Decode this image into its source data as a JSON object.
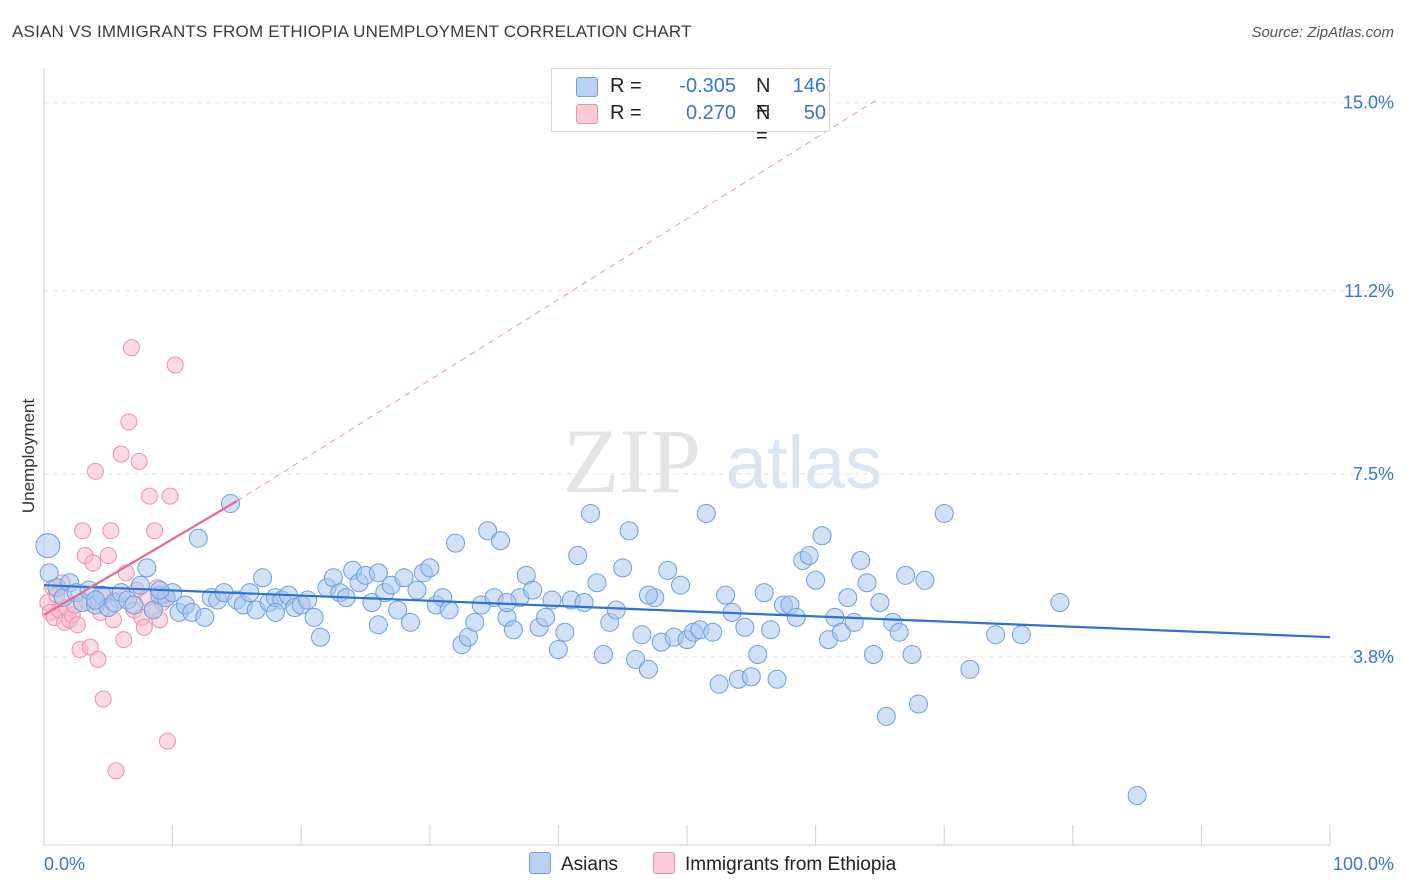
{
  "title": "ASIAN VS IMMIGRANTS FROM ETHIOPIA UNEMPLOYMENT CORRELATION CHART",
  "source": "Source: ZipAtlas.com",
  "watermark": {
    "zip": "ZIP",
    "atlas": "atlas"
  },
  "legend": {
    "asians": {
      "r_label": "R = ",
      "r_value": "-0.305",
      "n_label": "N = ",
      "n_value": "146"
    },
    "ethiopia": {
      "r_label": "R = ",
      "r_value": "0.270",
      "n_label": "N = ",
      "n_value": "50"
    }
  },
  "bottom_legend": {
    "asians": "Asians",
    "ethiopia": "Immigrants from Ethiopia"
  },
  "colors": {
    "asian_fill": "#a9c6ee",
    "asian_stroke": "#6f9fdc",
    "asian_line": "#2f72d0",
    "eth_fill": "#f7bccd",
    "eth_stroke": "#ee8fae",
    "eth_line": "#e36b96",
    "tick_label": "#3a74cf",
    "grid": "#e2e2e2"
  },
  "chart_data": {
    "type": "scatter",
    "title": "ASIAN VS IMMIGRANTS FROM ETHIOPIA UNEMPLOYMENT CORRELATION CHART",
    "xlabel": "",
    "ylabel": "Unemployment",
    "xlim": [
      0,
      100
    ],
    "ylim": [
      0,
      15.5
    ],
    "x_tick_labels": [
      "0.0%",
      "100.0%"
    ],
    "y_ticks": [
      3.8,
      7.5,
      11.2,
      15.0
    ],
    "y_tick_labels": [
      "3.8%",
      "7.5%",
      "11.2%",
      "15.0%"
    ],
    "grid": "horizontal dashed",
    "legend_position": "top-center",
    "series": [
      {
        "name": "Asians",
        "r": -0.305,
        "n": 146,
        "trend": {
          "x": [
            0,
            100
          ],
          "y": [
            5.25,
            4.2
          ]
        },
        "points": [
          [
            0.3,
            6.05
          ],
          [
            0.4,
            5.5
          ],
          [
            1.0,
            5.2
          ],
          [
            1.5,
            5.0
          ],
          [
            2.0,
            5.3
          ],
          [
            2.5,
            5.1
          ],
          [
            3.0,
            4.9
          ],
          [
            3.5,
            5.15
          ],
          [
            4.0,
            4.85
          ],
          [
            4.5,
            5.05
          ],
          [
            5.0,
            4.8
          ],
          [
            5.5,
            4.9
          ],
          [
            6.0,
            5.1
          ],
          [
            6.5,
            4.95
          ],
          [
            7.0,
            4.85
          ],
          [
            7.5,
            5.25
          ],
          [
            8.0,
            5.6
          ],
          [
            8.5,
            4.75
          ],
          [
            9.0,
            5.05
          ],
          [
            9.5,
            5.0
          ],
          [
            10.0,
            5.1
          ],
          [
            10.5,
            4.7
          ],
          [
            11.0,
            4.85
          ],
          [
            11.5,
            4.7
          ],
          [
            12.0,
            6.2
          ],
          [
            12.5,
            4.6
          ],
          [
            13.0,
            5.0
          ],
          [
            13.5,
            4.95
          ],
          [
            14.0,
            5.1
          ],
          [
            14.5,
            6.9
          ],
          [
            15.0,
            4.95
          ],
          [
            15.5,
            4.85
          ],
          [
            16.0,
            5.1
          ],
          [
            16.5,
            4.75
          ],
          [
            17.0,
            5.4
          ],
          [
            17.5,
            4.9
          ],
          [
            18.0,
            5.0
          ],
          [
            18.5,
            4.95
          ],
          [
            19.0,
            5.05
          ],
          [
            19.5,
            4.8
          ],
          [
            20.0,
            4.85
          ],
          [
            20.5,
            4.95
          ],
          [
            21.0,
            4.6
          ],
          [
            21.5,
            4.2
          ],
          [
            22.0,
            5.2
          ],
          [
            22.5,
            5.4
          ],
          [
            23.0,
            5.1
          ],
          [
            23.5,
            5.0
          ],
          [
            24.0,
            5.55
          ],
          [
            24.5,
            5.3
          ],
          [
            25.0,
            5.45
          ],
          [
            25.5,
            4.9
          ],
          [
            26.0,
            4.45
          ],
          [
            26.5,
            5.1
          ],
          [
            27.0,
            5.25
          ],
          [
            27.5,
            4.75
          ],
          [
            28.0,
            5.4
          ],
          [
            28.5,
            4.5
          ],
          [
            29.0,
            5.15
          ],
          [
            29.5,
            5.5
          ],
          [
            30.0,
            5.6
          ],
          [
            30.5,
            4.85
          ],
          [
            31.0,
            5.0
          ],
          [
            31.5,
            4.75
          ],
          [
            32.0,
            6.1
          ],
          [
            32.5,
            4.05
          ],
          [
            33.0,
            4.2
          ],
          [
            33.5,
            4.5
          ],
          [
            34.0,
            4.85
          ],
          [
            34.5,
            6.35
          ],
          [
            35.0,
            5.0
          ],
          [
            35.5,
            6.15
          ],
          [
            36.0,
            4.6
          ],
          [
            36.5,
            4.35
          ],
          [
            37.0,
            5.0
          ],
          [
            37.5,
            5.45
          ],
          [
            38.0,
            5.15
          ],
          [
            38.5,
            4.4
          ],
          [
            39.0,
            4.6
          ],
          [
            39.5,
            4.95
          ],
          [
            40.0,
            3.95
          ],
          [
            40.5,
            4.3
          ],
          [
            41.0,
            4.95
          ],
          [
            41.5,
            5.85
          ],
          [
            42.0,
            4.9
          ],
          [
            42.5,
            6.7
          ],
          [
            43.0,
            5.3
          ],
          [
            43.5,
            3.85
          ],
          [
            44.0,
            4.5
          ],
          [
            44.5,
            4.75
          ],
          [
            45.0,
            5.6
          ],
          [
            45.5,
            6.35
          ],
          [
            46.0,
            3.75
          ],
          [
            46.5,
            4.25
          ],
          [
            47.0,
            3.55
          ],
          [
            47.5,
            5.0
          ],
          [
            48.0,
            4.1
          ],
          [
            48.5,
            5.55
          ],
          [
            49.0,
            4.2
          ],
          [
            49.5,
            5.25
          ],
          [
            50.0,
            4.15
          ],
          [
            50.5,
            4.3
          ],
          [
            51.0,
            4.35
          ],
          [
            51.5,
            6.7
          ],
          [
            52.0,
            4.3
          ],
          [
            52.5,
            3.25
          ],
          [
            53.0,
            5.05
          ],
          [
            53.5,
            4.7
          ],
          [
            54.0,
            3.35
          ],
          [
            54.5,
            4.4
          ],
          [
            55.0,
            3.4
          ],
          [
            55.5,
            3.85
          ],
          [
            56.0,
            5.1
          ],
          [
            56.5,
            4.35
          ],
          [
            57.0,
            3.35
          ],
          [
            57.5,
            4.85
          ],
          [
            58.0,
            4.85
          ],
          [
            58.5,
            4.6
          ],
          [
            59.0,
            5.75
          ],
          [
            59.5,
            5.85
          ],
          [
            60.0,
            5.35
          ],
          [
            60.5,
            6.25
          ],
          [
            61.0,
            4.15
          ],
          [
            61.5,
            4.6
          ],
          [
            62.0,
            4.3
          ],
          [
            62.5,
            5.0
          ],
          [
            63.0,
            4.5
          ],
          [
            63.5,
            5.75
          ],
          [
            64.0,
            5.3
          ],
          [
            64.5,
            3.85
          ],
          [
            65.0,
            4.9
          ],
          [
            65.5,
            2.6
          ],
          [
            66.0,
            4.5
          ],
          [
            66.5,
            4.3
          ],
          [
            67.0,
            5.45
          ],
          [
            67.5,
            3.85
          ],
          [
            68.0,
            2.85
          ],
          [
            68.5,
            5.35
          ],
          [
            70.0,
            6.7
          ],
          [
            72.0,
            3.55
          ],
          [
            74.0,
            4.25
          ],
          [
            76.0,
            4.25
          ],
          [
            79.0,
            4.9
          ],
          [
            85.0,
            1.0
          ],
          [
            4.0,
            4.95
          ],
          [
            9.0,
            5.15
          ],
          [
            18.0,
            4.7
          ],
          [
            26.0,
            5.5
          ],
          [
            36.0,
            4.9
          ],
          [
            47.0,
            5.05
          ]
        ]
      },
      {
        "name": "Immigrants from Ethiopia",
        "r": 0.27,
        "n": 50,
        "trend": {
          "x": [
            0,
            15
          ],
          "y": [
            4.65,
            6.95
          ]
        },
        "trend_extension": {
          "x": [
            15,
            65
          ],
          "y": [
            6.95,
            15.1
          ]
        },
        "points": [
          [
            0.3,
            4.9
          ],
          [
            0.5,
            4.7
          ],
          [
            0.7,
            5.2
          ],
          [
            0.8,
            4.6
          ],
          [
            1.0,
            5.05
          ],
          [
            1.2,
            4.75
          ],
          [
            1.4,
            5.3
          ],
          [
            1.6,
            4.5
          ],
          [
            1.8,
            4.8
          ],
          [
            2.0,
            4.55
          ],
          [
            2.2,
            4.65
          ],
          [
            2.4,
            4.85
          ],
          [
            2.6,
            4.45
          ],
          [
            2.8,
            3.95
          ],
          [
            3.0,
            6.35
          ],
          [
            3.2,
            5.85
          ],
          [
            3.4,
            4.9
          ],
          [
            3.6,
            4.0
          ],
          [
            3.8,
            5.7
          ],
          [
            4.0,
            7.55
          ],
          [
            4.2,
            3.75
          ],
          [
            4.4,
            4.7
          ],
          [
            4.6,
            2.95
          ],
          [
            4.8,
            5.05
          ],
          [
            5.0,
            5.85
          ],
          [
            5.2,
            6.35
          ],
          [
            5.4,
            4.55
          ],
          [
            5.6,
            1.5
          ],
          [
            5.8,
            4.95
          ],
          [
            6.0,
            7.9
          ],
          [
            6.2,
            4.15
          ],
          [
            6.4,
            5.5
          ],
          [
            6.6,
            8.55
          ],
          [
            6.8,
            10.05
          ],
          [
            7.0,
            4.75
          ],
          [
            7.2,
            5.15
          ],
          [
            7.4,
            7.75
          ],
          [
            7.6,
            4.6
          ],
          [
            7.8,
            4.4
          ],
          [
            8.0,
            5.0
          ],
          [
            8.2,
            7.05
          ],
          [
            8.4,
            4.75
          ],
          [
            8.6,
            6.35
          ],
          [
            8.8,
            5.2
          ],
          [
            9.0,
            4.55
          ],
          [
            9.2,
            4.9
          ],
          [
            9.4,
            5.05
          ],
          [
            9.6,
            2.1
          ],
          [
            9.8,
            7.05
          ],
          [
            10.2,
            9.7
          ]
        ]
      }
    ]
  }
}
